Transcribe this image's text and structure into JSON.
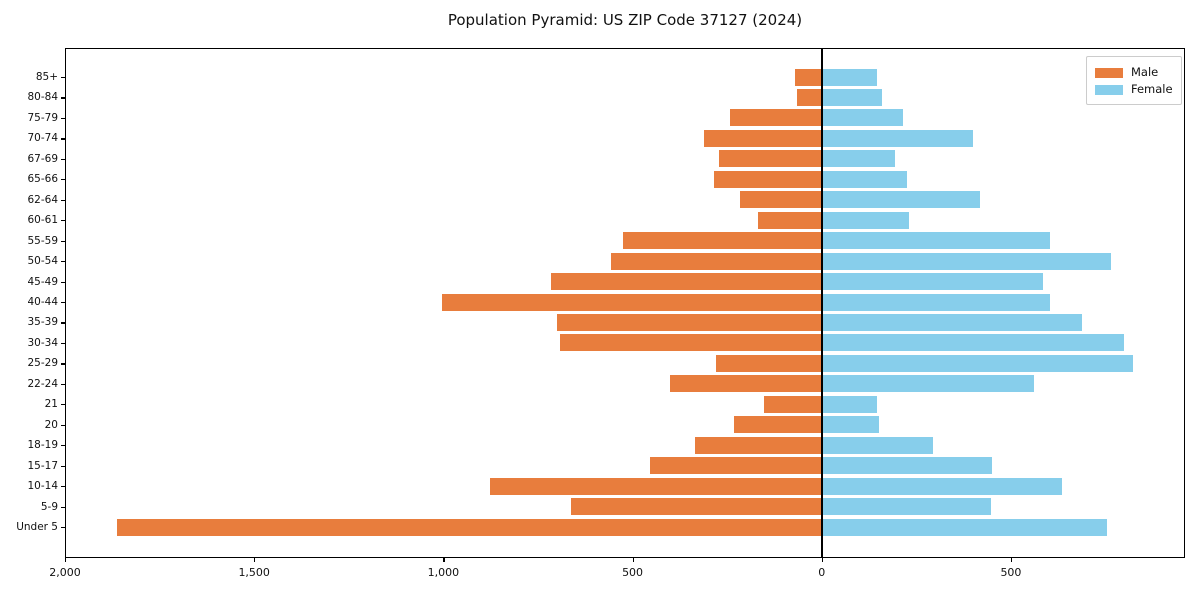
{
  "chart_data": {
    "type": "bar",
    "variant": "population-pyramid",
    "title": "Population Pyramid: US ZIP Code 37127 (2024)",
    "categories_top_to_bottom": [
      "85+",
      "80-84",
      "75-79",
      "70-74",
      "67-69",
      "65-66",
      "62-64",
      "60-61",
      "55-59",
      "50-54",
      "45-49",
      "40-44",
      "35-39",
      "30-34",
      "25-29",
      "22-24",
      "21",
      "20",
      "18-19",
      "15-17",
      "10-14",
      "5-9",
      "Under 5"
    ],
    "series": [
      {
        "name": "Male",
        "side": "left",
        "color": "#e87d3d",
        "values": [
          71,
          66,
          243,
          311,
          272,
          285,
          216,
          168,
          525,
          557,
          715,
          1003,
          700,
          691,
          280,
          401,
          153,
          232,
          335,
          454,
          878,
          662,
          1862
        ]
      },
      {
        "name": "Female",
        "side": "right",
        "color": "#87ceeb",
        "values": [
          145,
          158,
          214,
          399,
          193,
          224,
          417,
          230,
          602,
          765,
          586,
          604,
          689,
          800,
          823,
          562,
          145,
          152,
          293,
          449,
          636,
          446,
          755
        ]
      }
    ],
    "x_axis": {
      "min": -2000,
      "max": 960,
      "tick_values": [
        -2000,
        -1500,
        -1000,
        -500,
        0,
        500
      ],
      "tick_labels": [
        "2,000",
        "1,500",
        "1,000",
        "500",
        "0",
        "500"
      ]
    },
    "legend_position": "upper-right",
    "grid": false,
    "zero_line": true,
    "colors": {
      "male": "#e87d3d",
      "female": "#87ceeb",
      "axis": "#000000",
      "background": "#ffffff",
      "legend_border": "#cccccc"
    }
  }
}
